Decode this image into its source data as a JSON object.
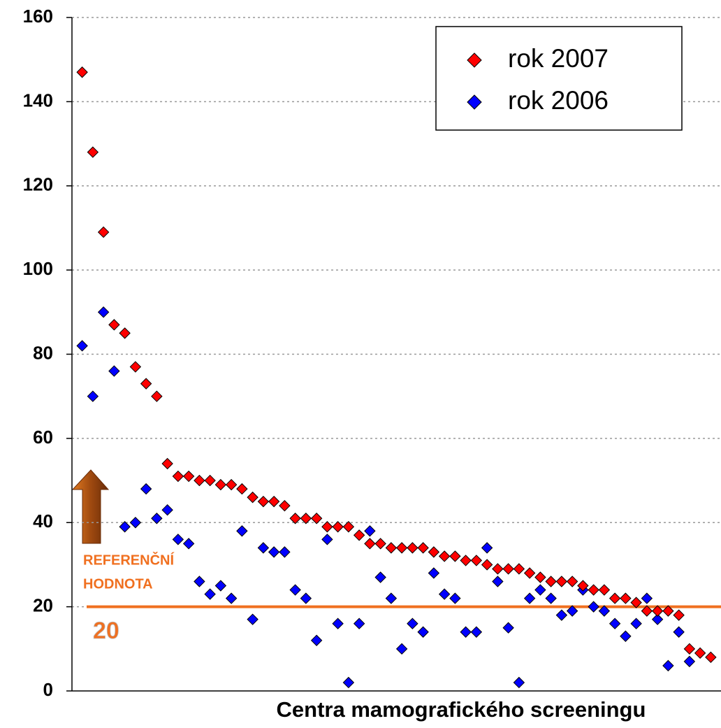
{
  "chart_data": {
    "type": "scatter",
    "x_label": "Centra mamografického screeningu",
    "categories": [
      null,
      null,
      null,
      null,
      null,
      null,
      null,
      null,
      null,
      null,
      null,
      null,
      null,
      null,
      null,
      null,
      null,
      null,
      null,
      null,
      null,
      null,
      null,
      null,
      null,
      null,
      null,
      null,
      null,
      null,
      null,
      null,
      null,
      null,
      null,
      null,
      null,
      null,
      null,
      null,
      null,
      null,
      null,
      null,
      null,
      null,
      null,
      null,
      null,
      null,
      null,
      null,
      null,
      null,
      null,
      null,
      null,
      null,
      null,
      null
    ],
    "series": [
      {
        "name": "rok 2007",
        "color": "#ff0000",
        "values": [
          147,
          128,
          109,
          87,
          85,
          77,
          73,
          70,
          54,
          51,
          51,
          50,
          50,
          49,
          49,
          48,
          46,
          45,
          45,
          44,
          41,
          41,
          41,
          39,
          39,
          39,
          37,
          35,
          35,
          34,
          34,
          34,
          34,
          33,
          32,
          32,
          31,
          31,
          30,
          29,
          29,
          29,
          28,
          27,
          26,
          26,
          26,
          25,
          24,
          24,
          22,
          22,
          21,
          19,
          19,
          19,
          18,
          10,
          9,
          8
        ]
      },
      {
        "name": "rok 2006",
        "color": "#0000ff",
        "values": [
          82,
          70,
          90,
          76,
          39,
          40,
          48,
          41,
          43,
          36,
          35,
          26,
          23,
          25,
          22,
          38,
          17,
          34,
          33,
          33,
          24,
          22,
          12,
          36,
          16,
          2,
          16,
          38,
          27,
          22,
          10,
          16,
          14,
          28,
          23,
          22,
          14,
          14,
          34,
          26,
          15,
          2,
          22,
          24,
          22,
          18,
          19,
          24,
          20,
          19,
          16,
          13,
          16,
          22,
          17,
          6,
          14,
          7,
          null,
          null
        ]
      }
    ],
    "ylim": [
      0,
      160
    ],
    "yticks": [
      0,
      20,
      40,
      60,
      80,
      100,
      120,
      140,
      160
    ],
    "grid": true,
    "legend": "top-right",
    "reference_line": {
      "value": 20,
      "color": "#f07020",
      "text": [
        "REFERENČNÍ",
        "HODNOTA"
      ]
    }
  }
}
